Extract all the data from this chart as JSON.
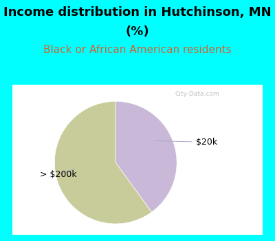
{
  "title_line1": "Income distribution in Hutchinson, MN",
  "title_line2": "(%)",
  "subtitle": "Black or African American residents",
  "outer_bg_color": "#00FFFF",
  "chart_bg_color": "#E8F5EE",
  "slices": [
    {
      "label": "$20k",
      "value": 40,
      "color": "#C9B8D8"
    },
    {
      "label": "> $200k",
      "value": 60,
      "color": "#C8CC9A"
    }
  ],
  "title_fontsize": 13,
  "subtitle_fontsize": 11,
  "subtitle_color": "#CC6633",
  "label_fontsize": 9,
  "watermark": "City-Data.com",
  "title_color": "#000000",
  "start_angle": 90,
  "slice_split": [
    40,
    60
  ]
}
